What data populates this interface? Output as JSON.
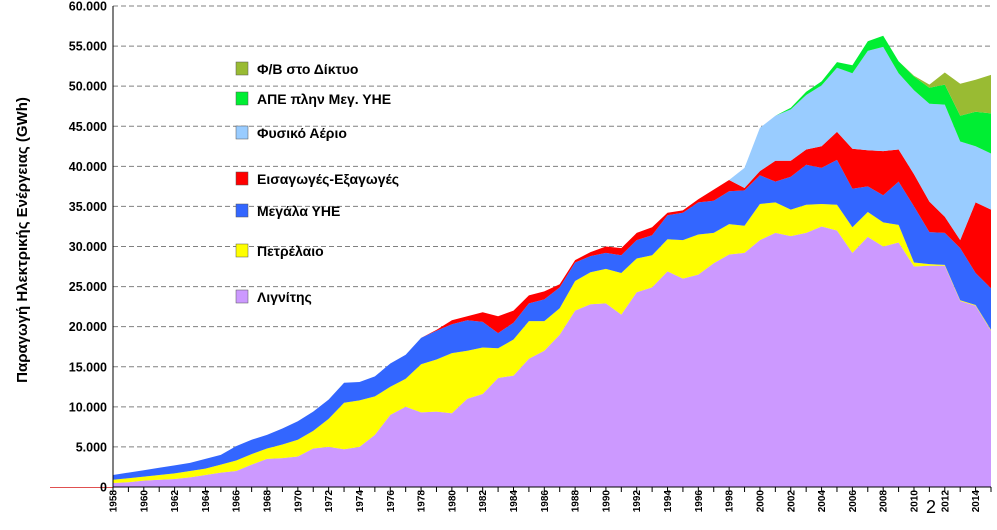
{
  "slide_number": "2",
  "chart_data": {
    "type": "area",
    "stacked": true,
    "title": "",
    "xlabel": "",
    "ylabel": "Παραγωγή Ηλεκτρικής Ενέργειας (GWh)",
    "ylim": [
      0,
      60000
    ],
    "yticks": [
      0,
      5000,
      10000,
      15000,
      20000,
      25000,
      30000,
      35000,
      40000,
      45000,
      50000,
      55000,
      60000
    ],
    "ytick_labels": [
      "0",
      "5.000",
      "10.000",
      "15.000",
      "20.000",
      "25.000",
      "30.000",
      "35.000",
      "40.000",
      "45.000",
      "50.000",
      "55.000",
      "60.000"
    ],
    "xlim": [
      1958,
      2015
    ],
    "xtick_labels": [
      "1958",
      "1960",
      "1962",
      "1964",
      "1966",
      "1968",
      "1970",
      "1972",
      "1974",
      "1976",
      "1978",
      "1980",
      "1982",
      "1984",
      "1986",
      "1988",
      "1990",
      "1992",
      "1994",
      "1996",
      "1998",
      "2000",
      "2002",
      "2004",
      "2006",
      "2008",
      "2010",
      "2012",
      "2014"
    ],
    "grid": "horizontal dashed",
    "legend_position": "top-left inside",
    "x": [
      1958,
      1959,
      1960,
      1961,
      1962,
      1963,
      1964,
      1965,
      1966,
      1967,
      1968,
      1969,
      1970,
      1971,
      1972,
      1973,
      1974,
      1975,
      1976,
      1977,
      1978,
      1979,
      1980,
      1981,
      1982,
      1983,
      1984,
      1985,
      1986,
      1987,
      1988,
      1989,
      1990,
      1991,
      1992,
      1993,
      1994,
      1995,
      1996,
      1997,
      1998,
      1999,
      2000,
      2001,
      2002,
      2003,
      2004,
      2005,
      2006,
      2007,
      2008,
      2009,
      2010,
      2011,
      2012,
      2013,
      2014,
      2015
    ],
    "series": [
      {
        "name": "Λιγνίτης",
        "color": "#cc99ff",
        "values": [
          500,
          600,
          800,
          900,
          1000,
          1200,
          1500,
          1800,
          2000,
          2800,
          3500,
          3600,
          3800,
          4800,
          5000,
          4700,
          5000,
          6500,
          9000,
          10000,
          9300,
          9400,
          9200,
          11000,
          11600,
          13600,
          13900,
          16000,
          17000,
          19000,
          22000,
          22800,
          22900,
          21500,
          24300,
          24900,
          26900,
          26000,
          26500,
          27900,
          29000,
          29200,
          30800,
          31700,
          31300,
          31700,
          32500,
          32000,
          29200,
          31200,
          30000,
          30500,
          27500,
          27600,
          27600,
          23200,
          22600,
          19500
        ]
      },
      {
        "name": "Πετρέλαιο",
        "color": "#ffff00",
        "values": [
          400,
          500,
          500,
          600,
          700,
          800,
          800,
          1000,
          1300,
          1300,
          1300,
          1700,
          2100,
          2200,
          3500,
          5800,
          5800,
          4800,
          3500,
          3500,
          6000,
          6500,
          7500,
          6000,
          5800,
          3700,
          4500,
          4700,
          3700,
          3300,
          3700,
          4000,
          4300,
          5200,
          4200,
          4000,
          4000,
          4800,
          5000,
          3800,
          3800,
          3400,
          4500,
          3800,
          3300,
          3500,
          2800,
          3200,
          3200,
          3100,
          3000,
          2200,
          500,
          200,
          100,
          100,
          100,
          100
        ]
      },
      {
        "name": "Μεγάλα ΥΗΕ",
        "color": "#3366ff",
        "values": [
          600,
          700,
          800,
          900,
          1000,
          1000,
          1200,
          1200,
          1800,
          1800,
          1700,
          2000,
          2300,
          2400,
          2400,
          2500,
          2300,
          2500,
          2900,
          3000,
          3300,
          3600,
          3600,
          3800,
          3200,
          1900,
          2100,
          2200,
          2700,
          2600,
          2300,
          2000,
          2000,
          2200,
          2300,
          2500,
          3000,
          3400,
          4000,
          4000,
          4100,
          4400,
          3600,
          2600,
          4100,
          5000,
          4500,
          5600,
          4800,
          3200,
          3400,
          5400,
          7000,
          4000,
          4000,
          6500,
          4000,
          5200
        ]
      },
      {
        "name": "Εισαγωγές-Εξαγωγές",
        "color": "#ff0000",
        "values": [
          0,
          0,
          0,
          0,
          0,
          0,
          0,
          0,
          0,
          0,
          0,
          0,
          0,
          0,
          0,
          0,
          0,
          0,
          0,
          0,
          0,
          100,
          500,
          500,
          1200,
          2100,
          1500,
          1000,
          1000,
          400,
          300,
          500,
          800,
          900,
          900,
          1000,
          300,
          300,
          400,
          1400,
          1400,
          300,
          500,
          2600,
          2000,
          1900,
          2700,
          3500,
          5000,
          4500,
          5500,
          4000,
          4000,
          3800,
          2000,
          1000,
          8800,
          9800
        ]
      },
      {
        "name": "Φυσικό Αέριο",
        "color": "#99ccff",
        "values": [
          0,
          0,
          0,
          0,
          0,
          0,
          0,
          0,
          0,
          0,
          0,
          0,
          0,
          0,
          0,
          0,
          0,
          0,
          0,
          0,
          0,
          0,
          0,
          0,
          0,
          0,
          0,
          0,
          0,
          0,
          0,
          0,
          0,
          0,
          0,
          0,
          0,
          0,
          0,
          0,
          0,
          2500,
          5400,
          5600,
          6400,
          6800,
          7600,
          8000,
          9400,
          12400,
          13000,
          9500,
          10500,
          12200,
          14000,
          12300,
          7000,
          7000
        ]
      },
      {
        "name": "ΑΠΕ πλην Μεγ. ΥΗΕ",
        "color": "#00ee33",
        "values": [
          0,
          0,
          0,
          0,
          0,
          0,
          0,
          0,
          0,
          0,
          0,
          0,
          0,
          0,
          0,
          0,
          0,
          0,
          0,
          0,
          0,
          0,
          0,
          0,
          0,
          0,
          0,
          0,
          0,
          0,
          0,
          0,
          0,
          0,
          0,
          0,
          0,
          0,
          0,
          0,
          0,
          0,
          0,
          0,
          200,
          400,
          500,
          700,
          1000,
          1200,
          1400,
          1500,
          1700,
          2000,
          2500,
          3200,
          4300,
          5000
        ]
      },
      {
        "name": "Φ/Β στο Δίκτυο",
        "color": "#99bb33",
        "values": [
          0,
          0,
          0,
          0,
          0,
          0,
          0,
          0,
          0,
          0,
          0,
          0,
          0,
          0,
          0,
          0,
          0,
          0,
          0,
          0,
          0,
          0,
          0,
          0,
          0,
          0,
          0,
          0,
          0,
          0,
          0,
          0,
          0,
          0,
          0,
          0,
          0,
          0,
          0,
          0,
          0,
          0,
          0,
          0,
          0,
          0,
          0,
          0,
          0,
          0,
          0,
          0,
          100,
          400,
          1500,
          4000,
          4000,
          4800
        ]
      }
    ],
    "legend_order": [
      "Φ/Β στο Δίκτυο",
      "ΑΠΕ πλην Μεγ. ΥΗΕ",
      "Φυσικό Αέριο",
      "Εισαγωγές-Εξαγωγές",
      "Μεγάλα ΥΗΕ",
      "Πετρέλαιο",
      "Λιγνίτης"
    ]
  }
}
